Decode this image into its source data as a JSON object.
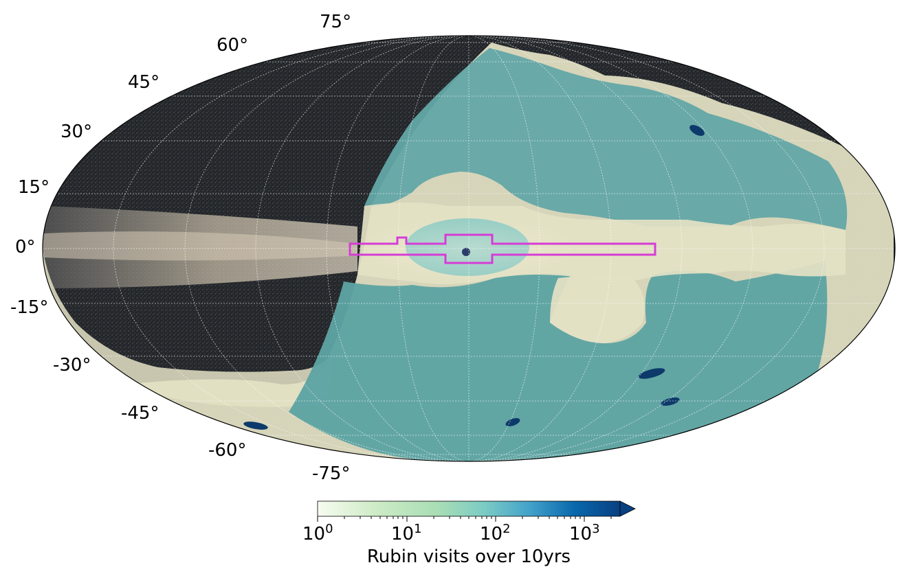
{
  "map": {
    "projection": "Mollweide (all-sky, galactic)",
    "latitude_labels": [
      "75°",
      "60°",
      "45°",
      "30°",
      "15°",
      "0°",
      "-15°",
      "-30°",
      "-45°",
      "-60°",
      "-75°"
    ],
    "survey_region": "Rubin footprint (semi-transparent overlay)",
    "highlight_outline_color": "#d63cd6",
    "galactic_bulge_color": "#e8dcc8",
    "sky_dark_color": "#1f2226",
    "footprint_low_color": "#e4e2c4",
    "footprint_mid_color": "#63a7a6"
  },
  "colorbar": {
    "title": "Rubin visits over 10yrs",
    "scale": "log",
    "range": [
      1,
      3000
    ],
    "extend": "max",
    "ticks": [
      {
        "base": "10",
        "exp": "0"
      },
      {
        "base": "10",
        "exp": "1"
      },
      {
        "base": "10",
        "exp": "2"
      },
      {
        "base": "10",
        "exp": "3"
      }
    ],
    "colors": [
      "#f7fcf0",
      "#ccebc5",
      "#7bccc4",
      "#43a2ca",
      "#0868ac",
      "#084081"
    ]
  }
}
